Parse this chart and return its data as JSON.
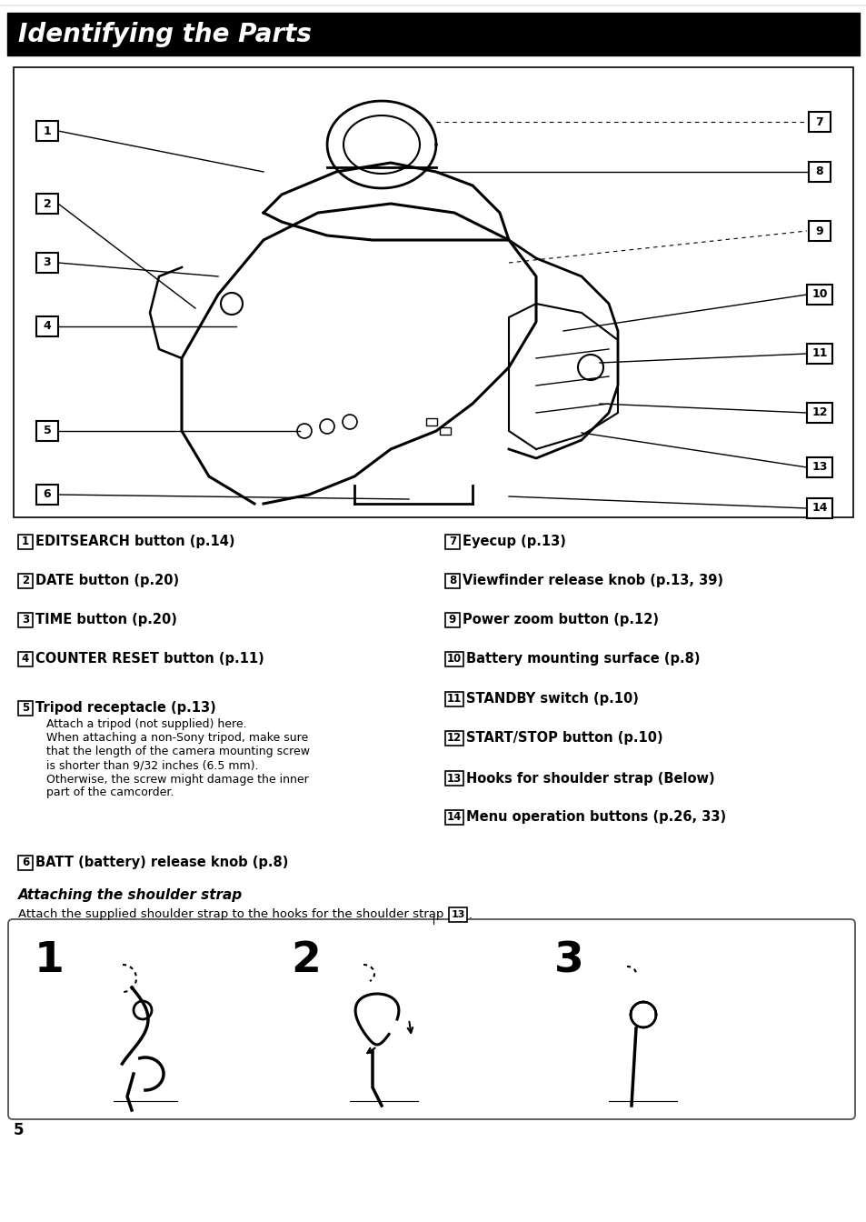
{
  "title": "Identifying the Parts",
  "title_bg": "#000000",
  "title_fg": "#ffffff",
  "page_bg": "#ffffff",
  "page_number": "5",
  "left_items": [
    {
      "num": "1",
      "bold": "EDITSEARCH button (p.14)",
      "detail": ""
    },
    {
      "num": "2",
      "bold": "DATE button (p.20)",
      "detail": ""
    },
    {
      "num": "3",
      "bold": "TIME button (p.20)",
      "detail": ""
    },
    {
      "num": "4",
      "bold": "COUNTER RESET button (p.11)",
      "detail": ""
    },
    {
      "num": "5",
      "bold": "Tripod receptacle (p.13)",
      "detail": "Attach a tripod (not supplied) here.\nWhen attaching a non-Sony tripod, make sure\nthat the length of the camera mounting screw\nis shorter than 9/32 inches (6.5 mm).\nOtherwise, the screw might damage the inner\npart of the camcorder."
    },
    {
      "num": "6",
      "bold": "BATT (battery) release knob (p.8)",
      "detail": ""
    }
  ],
  "right_items": [
    {
      "num": "7",
      "bold": "Eyecup (p.13)",
      "detail": ""
    },
    {
      "num": "8",
      "bold": "Viewfinder release knob (p.13, 39)",
      "detail": ""
    },
    {
      "num": "9",
      "bold": "Power zoom button (p.12)",
      "detail": ""
    },
    {
      "num": "10",
      "bold": "Battery mounting surface (p.8)",
      "detail": ""
    },
    {
      "num": "11",
      "bold": "STANDBY switch (p.10)",
      "detail": ""
    },
    {
      "num": "12",
      "bold": "START/STOP button (p.10)",
      "detail": ""
    },
    {
      "num": "13",
      "bold": "Hooks for shoulder strap (Below)",
      "detail": ""
    },
    {
      "num": "14",
      "bold": "Menu operation buttons (p.26, 33)",
      "detail": ""
    }
  ],
  "strap_title": "Attaching the shoulder strap",
  "strap_text": "Attach the supplied shoulder strap to the hooks for the shoulder strap ",
  "strap_ref": "13"
}
